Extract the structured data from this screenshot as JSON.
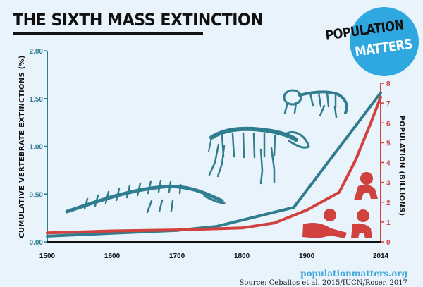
{
  "title": "THE SIXTH MASS EXTINCTION",
  "logo": {
    "line1": "POPULATION",
    "line2": "MATTERS"
  },
  "website": "populationmatters.org",
  "source": "Source: Ceballos et al. 2015/IUCN/Roser, 2017",
  "colors": {
    "extinctions": "#2f7d8e",
    "population": "#d1413d",
    "background": "#e8f3fb",
    "logo": "#2fa8e0"
  },
  "chart_data": {
    "type": "line",
    "x_ticks": [
      "1500",
      "1600",
      "1700",
      "1800",
      "1900",
      "2014"
    ],
    "xlim": [
      1500,
      2014
    ],
    "left_axis": {
      "label": "CUMULATIVE VERTEBRATE EXTINCTIONS (%)",
      "ticks": [
        "0.00",
        "0.50",
        "1.00",
        "1.50",
        "2.00"
      ],
      "range": [
        0,
        2
      ]
    },
    "right_axis": {
      "label": "POPULATION (BILLIONS)",
      "ticks": [
        "0",
        "1",
        "2",
        "3",
        "4",
        "5",
        "6",
        "7",
        "8"
      ],
      "range": [
        0,
        8
      ]
    },
    "series": [
      {
        "axis": "left",
        "x": [
          1500,
          1600,
          1700,
          1760,
          1880,
          2014
        ],
        "values": [
          0.06,
          0.09,
          0.12,
          0.16,
          0.36,
          1.56
        ]
      },
      {
        "axis": "right",
        "x": [
          1500,
          1600,
          1700,
          1800,
          1850,
          1900,
          1950,
          1975,
          2000,
          2014
        ],
        "values": [
          0.45,
          0.55,
          0.6,
          0.7,
          0.95,
          1.6,
          2.5,
          4.1,
          6.1,
          7.3
        ]
      }
    ],
    "grid": false
  }
}
